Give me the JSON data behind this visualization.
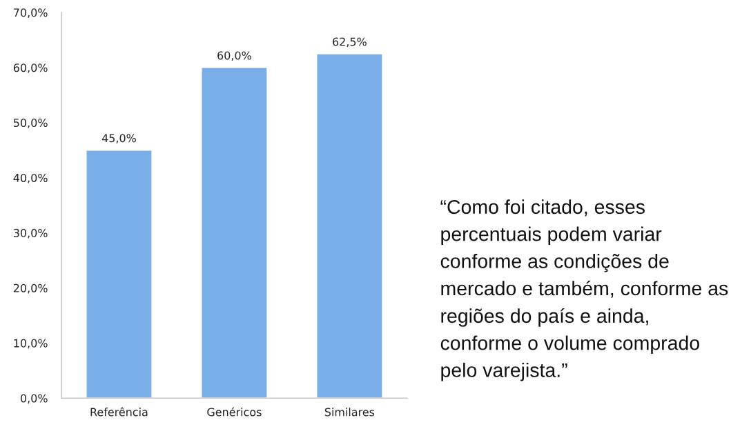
{
  "chart_data": {
    "type": "bar",
    "categories": [
      "Referência",
      "Genéricos",
      "Similares"
    ],
    "values": [
      45,
      60,
      62.5
    ],
    "color": "#7aaee8",
    "value_labels": [
      "45,0%",
      "60,0%",
      "62,5%"
    ],
    "ylim": [
      0,
      70
    ],
    "yticks": [
      {
        "value": 0,
        "label": "0,0%"
      },
      {
        "value": 10,
        "label": "10,0%"
      },
      {
        "value": 20,
        "label": "20,0%"
      },
      {
        "value": 30,
        "label": "30,0%"
      },
      {
        "value": 40,
        "label": "40,0%"
      },
      {
        "value": 50,
        "label": "50,0%"
      },
      {
        "value": 60,
        "label": "60,0%"
      },
      {
        "value": 70,
        "label": "70,0%"
      }
    ],
    "annotations": [
      "“Como foi citado, esses percentuais podem variar conforme as condições de mercado e também, conforme as regiões do país e ainda, conforme o volume comprado pelo varejista.”"
    ]
  }
}
